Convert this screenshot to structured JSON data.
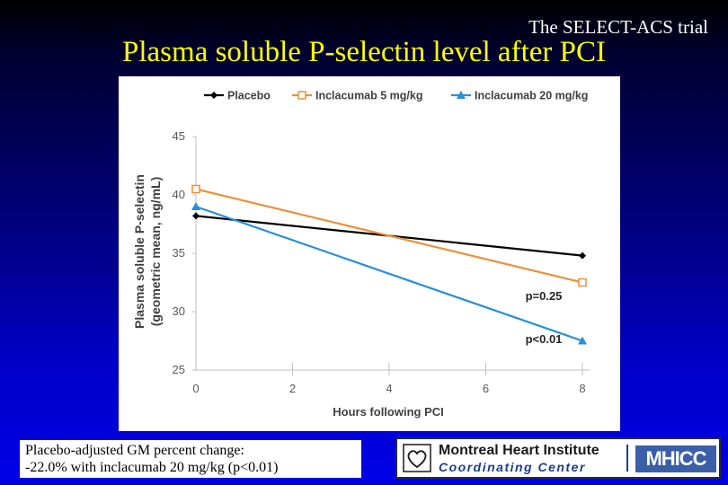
{
  "header": {
    "trial_name": "The SELECT-ACS trial",
    "title": "Plasma soluble P-selectin level after PCI"
  },
  "chart_data": {
    "type": "line",
    "x": [
      0,
      8
    ],
    "xticks": [
      0,
      2,
      4,
      6,
      8
    ],
    "yticks": [
      25,
      30,
      35,
      40,
      45
    ],
    "xlim": [
      0,
      8
    ],
    "ylim": [
      25,
      45
    ],
    "xlabel": "Hours following PCI",
    "ylabel_line1": "Plasma soluble P-selectin",
    "ylabel_line2": "(geometric mean, ng/mL)",
    "legend_position": "top",
    "grid": "vertical",
    "series": [
      {
        "name": "Placebo",
        "values": [
          38.2,
          34.8
        ],
        "color": "#000000",
        "marker": "diamond"
      },
      {
        "name": "Inclacumab 5 mg/kg",
        "values": [
          40.5,
          32.5
        ],
        "color": "#e8913a",
        "marker": "square"
      },
      {
        "name": "Inclacumab 20 mg/kg",
        "values": [
          39.0,
          27.5
        ],
        "color": "#2a8fd6",
        "marker": "triangle"
      }
    ],
    "annotations": [
      {
        "text": "p=0.25",
        "x": 7.2,
        "y": 31.0
      },
      {
        "text": "p<0.01",
        "x": 7.2,
        "y": 27.3
      }
    ]
  },
  "footnote": {
    "line1": "Placebo-adjusted GM percent change:",
    "line2": "-22.0% with inclacumab 20 mg/kg (p<0.01)"
  },
  "logo": {
    "line1": "Montreal Heart Institute",
    "line2": "Coordinating Center",
    "badge": "MHICC"
  }
}
